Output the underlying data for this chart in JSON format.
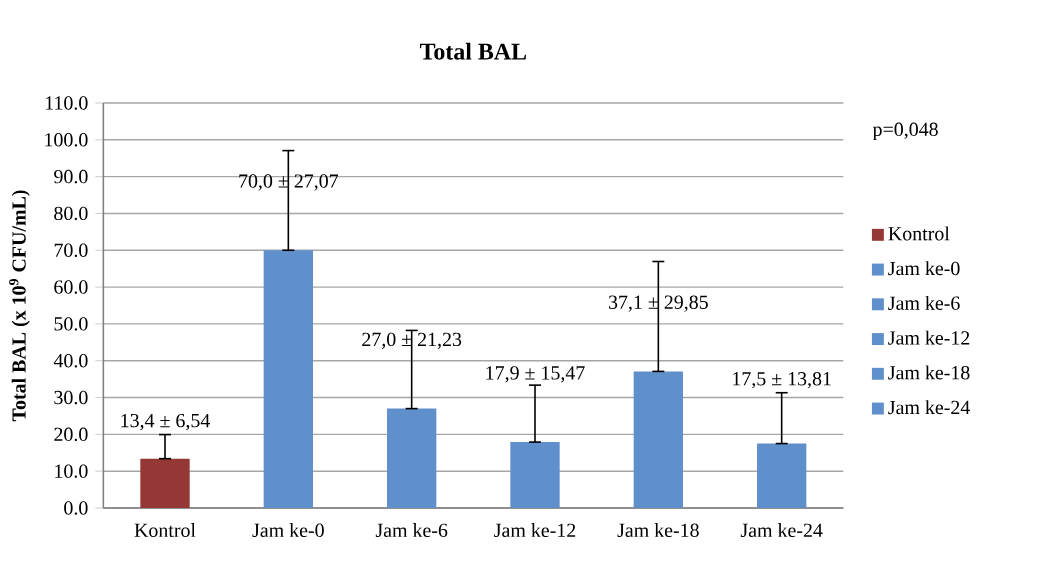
{
  "chart_data": {
    "type": "bar",
    "title": "Total BAL",
    "ylabel": "Total BAL (x 10$^{9}$ CFU/mL)",
    "categories": [
      "Kontrol",
      "Jam ke-0",
      "Jam ke-6",
      "Jam ke-12",
      "Jam ke-18",
      "Jam ke-24"
    ],
    "series": [
      {
        "name": "Kontrol",
        "color": "#953735",
        "values": [
          13.4,
          null,
          null,
          null,
          null,
          null
        ],
        "errors": [
          [
            13.4,
            19.94
          ],
          null,
          null,
          null,
          null,
          null
        ],
        "value_labels": [
          "13,4 ± 6,54",
          null,
          null,
          null,
          null,
          null
        ]
      },
      {
        "name": "Jam ke-0",
        "color": "#6090cc",
        "values": [
          null,
          70.0,
          null,
          null,
          null,
          null
        ],
        "errors": [
          null,
          [
            70.0,
            97.07
          ],
          null,
          null,
          null,
          null
        ],
        "value_labels": [
          null,
          "70,0 ± 27,07",
          null,
          null,
          null,
          null
        ]
      },
      {
        "name": "Jam ke-6",
        "color": "#6090cc",
        "values": [
          null,
          null,
          27.0,
          null,
          null,
          null
        ],
        "errors": [
          null,
          null,
          [
            27.0,
            48.23
          ],
          null,
          null,
          null
        ],
        "value_labels": [
          null,
          null,
          "27,0 ± 21,23",
          null,
          null,
          null
        ]
      },
      {
        "name": "Jam ke-12",
        "color": "#6090cc",
        "values": [
          null,
          null,
          null,
          17.9,
          null,
          null
        ],
        "errors": [
          null,
          null,
          null,
          [
            17.9,
            33.37
          ],
          null,
          null
        ],
        "value_labels": [
          null,
          null,
          null,
          "17,9 ± 15,47",
          null,
          null
        ]
      },
      {
        "name": "Jam ke-18",
        "color": "#6090cc",
        "values": [
          null,
          null,
          null,
          null,
          37.1,
          null
        ],
        "errors": [
          null,
          null,
          null,
          null,
          [
            37.1,
            66.95
          ],
          null
        ],
        "value_labels": [
          null,
          null,
          null,
          null,
          "37,1 ± 29,85",
          null
        ]
      },
      {
        "name": "Jam ke-24",
        "color": "#6090cc",
        "values": [
          null,
          null,
          null,
          null,
          null,
          17.5
        ],
        "errors": [
          null,
          null,
          null,
          null,
          null,
          [
            17.5,
            31.31
          ]
        ],
        "value_labels": [
          null,
          null,
          null,
          null,
          null,
          "17,5 ± 13,81"
        ]
      }
    ],
    "ylim": [
      0,
      110
    ],
    "yticks": [
      {
        "value": 0,
        "label": "0.0"
      },
      {
        "value": 10,
        "label": "10.0"
      },
      {
        "value": 20,
        "label": "20.0"
      },
      {
        "value": 30,
        "label": "30.0"
      },
      {
        "value": 40,
        "label": "40.0"
      },
      {
        "value": 50,
        "label": "50.0"
      },
      {
        "value": 60,
        "label": "60.0"
      },
      {
        "value": 70,
        "label": "70.0"
      },
      {
        "value": 80,
        "label": "80.0"
      },
      {
        "value": 90,
        "label": "90.0"
      },
      {
        "value": 100,
        "label": "100.0"
      },
      {
        "value": 110,
        "label": "110.0"
      }
    ],
    "grid": "y",
    "legend": "right",
    "annotations": [
      "p=0,048"
    ]
  }
}
